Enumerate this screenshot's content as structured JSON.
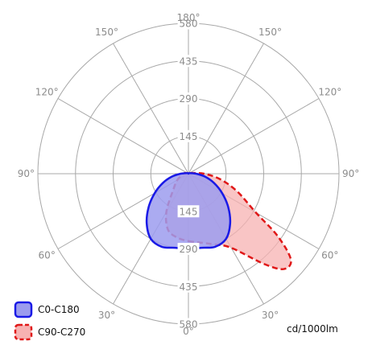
{
  "chart_data": {
    "type": "polar",
    "unit": "cd/1000lm",
    "rlim": [
      0,
      580
    ],
    "radial_ticks": [
      145,
      290,
      435,
      580
    ],
    "radial_tick_labels": [
      "145",
      "290",
      "435",
      "580"
    ],
    "angle_labels": [
      {
        "text": "180°",
        "angle": 180
      },
      {
        "text": "150°",
        "angle": 150,
        "side": "right"
      },
      {
        "text": "150°",
        "angle": 150,
        "side": "left"
      },
      {
        "text": "120°",
        "angle": 120,
        "side": "right"
      },
      {
        "text": "120°",
        "angle": 120,
        "side": "left"
      },
      {
        "text": "90°",
        "angle": 90,
        "side": "right"
      },
      {
        "text": "90°",
        "angle": 90,
        "side": "left"
      },
      {
        "text": "60°",
        "angle": 60,
        "side": "right"
      },
      {
        "text": "60°",
        "angle": 60,
        "side": "left"
      },
      {
        "text": "30°",
        "angle": 30,
        "side": "right"
      },
      {
        "text": "30°",
        "angle": 30,
        "side": "left"
      },
      {
        "text": "0°",
        "angle": 0
      }
    ],
    "legend_position": "bottom-left",
    "series": [
      {
        "name": "C0-C180",
        "line_style": "solid",
        "stroke": "#1a1ae6",
        "fill": "#9c9cee",
        "points": [
          {
            "angle": 0,
            "r": 290
          },
          {
            "angle": 10,
            "r": 290
          },
          {
            "angle": 20,
            "r": 300
          },
          {
            "angle": 30,
            "r": 290
          },
          {
            "angle": 40,
            "r": 250
          },
          {
            "angle": 50,
            "r": 200
          },
          {
            "angle": 60,
            "r": 150
          },
          {
            "angle": 70,
            "r": 105
          },
          {
            "angle": 80,
            "r": 65
          },
          {
            "angle": 90,
            "r": 30
          },
          {
            "angle": 120,
            "r": 5
          },
          {
            "angle": 180,
            "r": 0
          },
          {
            "angle": -120,
            "r": 5
          },
          {
            "angle": -90,
            "r": 30
          },
          {
            "angle": -80,
            "r": 65
          },
          {
            "angle": -70,
            "r": 105
          },
          {
            "angle": -60,
            "r": 150
          },
          {
            "angle": -50,
            "r": 200
          },
          {
            "angle": -40,
            "r": 250
          },
          {
            "angle": -30,
            "r": 290
          },
          {
            "angle": -20,
            "r": 300
          },
          {
            "angle": -10,
            "r": 290
          }
        ]
      },
      {
        "name": "C90-C270",
        "line_style": "dashed",
        "stroke": "#e01818",
        "fill": "#f7b2b2",
        "points": [
          {
            "angle": 0,
            "r": 260
          },
          {
            "angle": 10,
            "r": 270
          },
          {
            "angle": 20,
            "r": 290
          },
          {
            "angle": 30,
            "r": 330
          },
          {
            "angle": 40,
            "r": 455
          },
          {
            "angle": 45,
            "r": 520
          },
          {
            "angle": 50,
            "r": 515
          },
          {
            "angle": 55,
            "r": 420
          },
          {
            "angle": 60,
            "r": 300
          },
          {
            "angle": 70,
            "r": 200
          },
          {
            "angle": 80,
            "r": 125
          },
          {
            "angle": 90,
            "r": 60
          },
          {
            "angle": 120,
            "r": 5
          },
          {
            "angle": 180,
            "r": 0
          },
          {
            "angle": -120,
            "r": 5
          },
          {
            "angle": -90,
            "r": 20
          },
          {
            "angle": -60,
            "r": 50
          },
          {
            "angle": -45,
            "r": 80
          },
          {
            "angle": -30,
            "r": 170
          },
          {
            "angle": -20,
            "r": 230
          },
          {
            "angle": -10,
            "r": 250
          }
        ]
      }
    ]
  }
}
